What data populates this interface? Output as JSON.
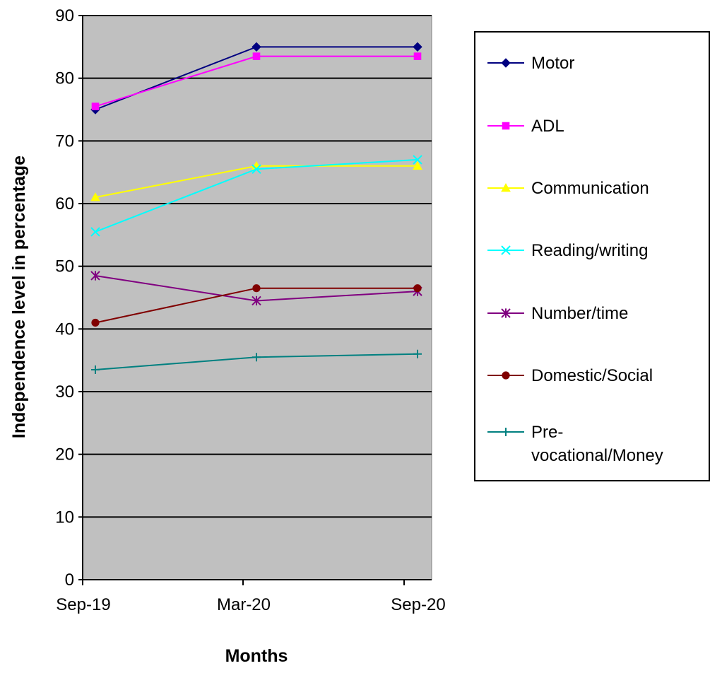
{
  "chart_data": {
    "type": "line",
    "title": "",
    "xlabel": "Months",
    "ylabel": "Independence level in percentage",
    "categories": [
      "Sep-19",
      "Mar-20",
      "Sep-20"
    ],
    "ylim": [
      0,
      90
    ],
    "yticks": [
      0,
      10,
      20,
      30,
      40,
      50,
      60,
      70,
      80,
      90
    ],
    "grid": true,
    "plot_background": "#C0C0C0",
    "legend_position": "right",
    "series": [
      {
        "name": "Motor",
        "values": [
          75,
          85,
          85
        ],
        "color": "#000080",
        "marker": "diamond"
      },
      {
        "name": "ADL",
        "values": [
          75.5,
          83.5,
          83.5
        ],
        "color": "#FF00FF",
        "marker": "square"
      },
      {
        "name": "Communication",
        "values": [
          61,
          66,
          66
        ],
        "color": "#FFFF00",
        "marker": "triangle"
      },
      {
        "name": "Reading/writing",
        "values": [
          55.5,
          65.5,
          67
        ],
        "color": "#00FFFF",
        "marker": "x"
      },
      {
        "name": "Number/time",
        "values": [
          48.5,
          44.5,
          46
        ],
        "color": "#800080",
        "marker": "star"
      },
      {
        "name": "Domestic/Social",
        "values": [
          41,
          46.5,
          46.5
        ],
        "color": "#800000",
        "marker": "circle"
      },
      {
        "name": "Pre-vocational/Money",
        "label_lines": [
          "Pre-",
          "vocational/Money"
        ],
        "values": [
          33.5,
          35.5,
          36
        ],
        "color": "#008080",
        "marker": "plus"
      }
    ]
  }
}
